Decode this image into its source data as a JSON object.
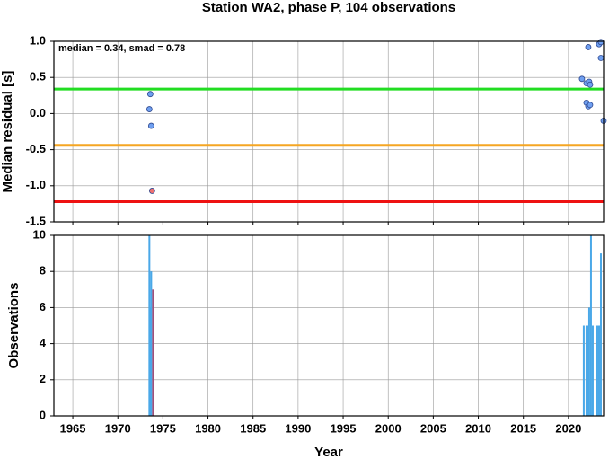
{
  "chart_data": [
    {
      "type": "scatter",
      "title": "Station WA2, phase P, 104 observations",
      "ylabel": "Median residual [s]",
      "annotation": "median = 0.34, smad = 0.78",
      "xlim": [
        1962.9,
        2023.9
      ],
      "ylim": [
        -1.5,
        1.0
      ],
      "yticks": [
        {
          "value": 1.0,
          "label": "1.0"
        },
        0.5,
        {
          "value": 0.0,
          "label": "0.0"
        },
        -0.5,
        {
          "value": -1.0,
          "label": "-1.0"
        },
        -1.5
      ],
      "grid": true,
      "hlines": [
        {
          "value": 0.34,
          "color": "#22dd22"
        },
        {
          "value": -0.44,
          "color": "#f5a623"
        },
        {
          "value": -1.22,
          "color": "#ee1111"
        }
      ],
      "series": [
        {
          "color": "#6f9ff0",
          "x": [
            1973.6,
            1973.5,
            1973.7,
            2021.5,
            2022.2,
            2023.4,
            2023.6,
            2022.0,
            2022.3,
            2022.4,
            2022.0,
            2022.2,
            2022.4,
            2023.6,
            2023.9
          ],
          "values": [
            0.27,
            0.06,
            -0.17,
            0.48,
            0.92,
            0.96,
            0.99,
            0.42,
            0.44,
            0.4,
            0.15,
            0.1,
            0.12,
            0.77,
            -0.1
          ]
        },
        {
          "color": "#f07070",
          "x": [
            1973.8
          ],
          "values": [
            -1.07
          ]
        }
      ]
    },
    {
      "type": "bar",
      "xlabel": "Year",
      "ylabel": "Observations",
      "xlim": [
        1962.9,
        2023.9
      ],
      "ylim": [
        0,
        10
      ],
      "xticks": [
        1965,
        1970,
        1975,
        1980,
        1985,
        1990,
        1995,
        2000,
        2005,
        2010,
        2015,
        2020
      ],
      "yticks": [
        0,
        2,
        4,
        6,
        8,
        10
      ],
      "grid": true,
      "series": [
        {
          "color": "#4aa8e8",
          "x": [
            1973.5,
            1973.6,
            1973.7,
            2021.7,
            2022.0,
            2022.2,
            2022.3,
            2022.5,
            2022.7,
            2023.2,
            2023.4,
            2023.6
          ],
          "values": [
            10,
            6,
            8,
            5,
            5,
            5,
            6,
            10,
            5,
            5,
            5,
            9
          ]
        },
        {
          "color": "#a0507a",
          "x": [
            1973.9
          ],
          "values": [
            7
          ]
        }
      ]
    }
  ]
}
